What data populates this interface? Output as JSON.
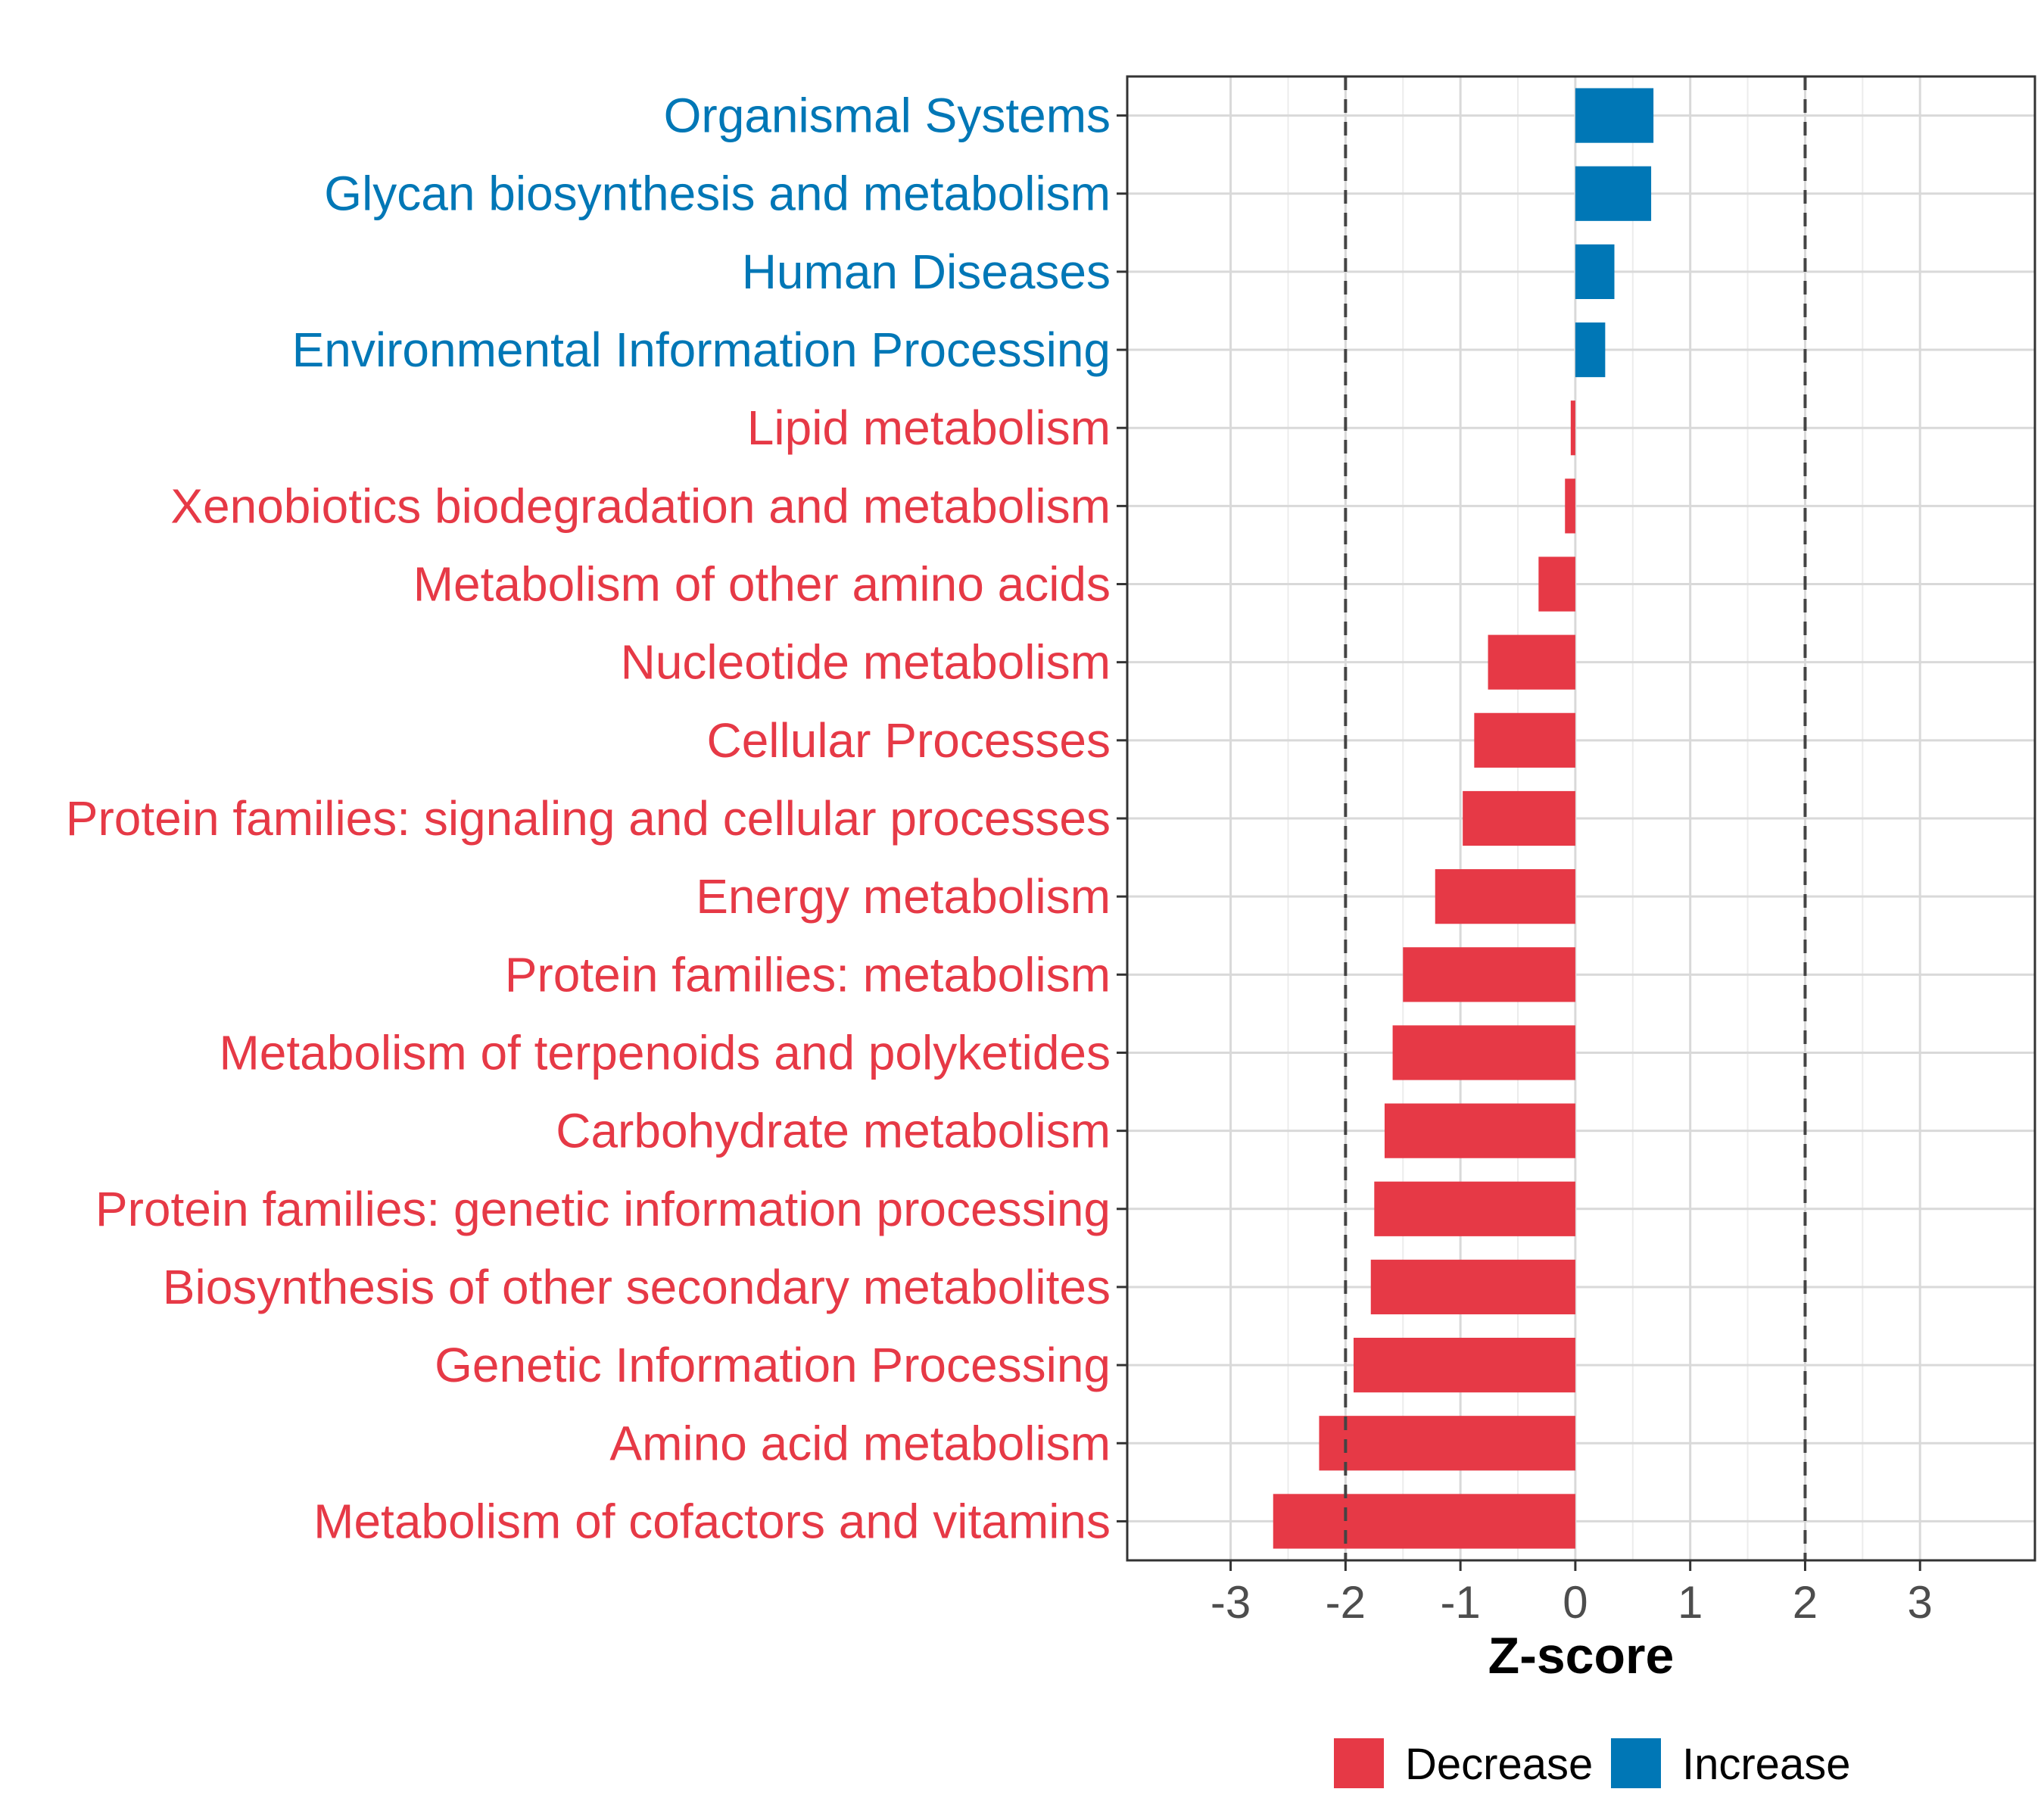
{
  "chart_data": {
    "type": "bar",
    "orientation": "horizontal",
    "xlabel": "Z-score",
    "xlim": [
      -3.9,
      4.0
    ],
    "xticks": [
      -3,
      -2,
      -1,
      0,
      1,
      2,
      3
    ],
    "xtick_labels": [
      "-3",
      "-2",
      "-1",
      "0",
      "1",
      "2",
      "3"
    ],
    "reference_lines": [
      -2,
      2
    ],
    "grid": true,
    "colors": {
      "Decrease": "#e63946",
      "Increase": "#0077b6"
    },
    "legend": {
      "position": "bottom",
      "entries": [
        {
          "label": "Decrease",
          "color": "#e63946"
        },
        {
          "label": "Increase",
          "color": "#0077b6"
        }
      ]
    },
    "categories": [
      "Organismal Systems",
      "Glycan biosynthesis and metabolism",
      "Human Diseases",
      "Environmental Information Processing",
      "Lipid metabolism",
      "Xenobiotics biodegradation and metabolism",
      "Metabolism of other amino acids",
      "Nucleotide metabolism",
      "Cellular Processes",
      "Protein families: signaling and cellular processes",
      "Energy metabolism",
      "Protein families: metabolism",
      "Metabolism of terpenoids and polyketides",
      "Carbohydrate metabolism",
      "Protein families: genetic information processing",
      "Biosynthesis of other secondary metabolites",
      "Genetic Information Processing",
      "Amino acid metabolism",
      "Metabolism of cofactors and vitamins"
    ],
    "values": [
      0.68,
      0.66,
      0.34,
      0.26,
      -0.04,
      -0.09,
      -0.32,
      -0.76,
      -0.88,
      -0.98,
      -1.22,
      -1.5,
      -1.59,
      -1.66,
      -1.75,
      -1.78,
      -1.93,
      -2.23,
      -2.63
    ],
    "groups": [
      "Increase",
      "Increase",
      "Increase",
      "Increase",
      "Decrease",
      "Decrease",
      "Decrease",
      "Decrease",
      "Decrease",
      "Decrease",
      "Decrease",
      "Decrease",
      "Decrease",
      "Decrease",
      "Decrease",
      "Decrease",
      "Decrease",
      "Decrease",
      "Decrease"
    ]
  }
}
